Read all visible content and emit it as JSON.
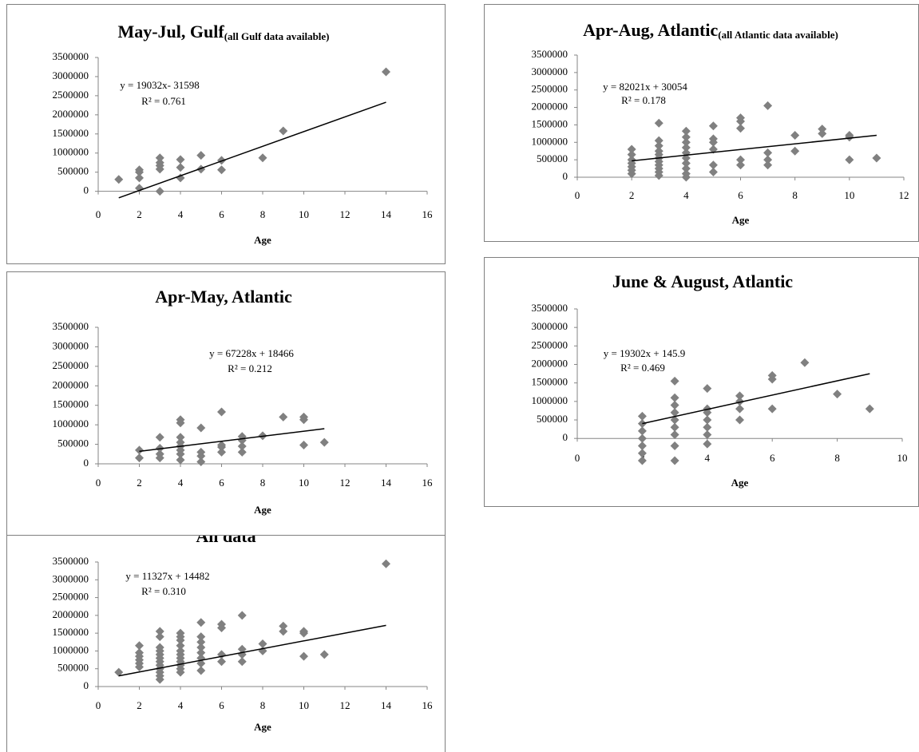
{
  "chart_data": [
    {
      "type": "scatter",
      "title": "May-Jul, Gulf",
      "subtitle": "(all Gulf data available)",
      "x_label": "Age",
      "equation": "y = 19032x- 31598",
      "r_squared": "R² = 0.761",
      "color": "#808080",
      "trend_color": "#000000",
      "xlim": [
        0,
        16
      ],
      "xticks": [
        0,
        2,
        4,
        6,
        8,
        10,
        12,
        14,
        16
      ],
      "ylim": [
        -300000,
        3500000
      ],
      "yticks": [
        0,
        500000,
        1000000,
        1500000,
        2000000,
        2500000,
        3000000,
        3500000
      ],
      "x": [
        1,
        2,
        2,
        2,
        2,
        3,
        3,
        3,
        3,
        3,
        4,
        4,
        4,
        5,
        5,
        6,
        6,
        8,
        9,
        14
      ],
      "values": [
        310000,
        560000,
        500000,
        350000,
        80000,
        875000,
        750000,
        670000,
        580000,
        0,
        830000,
        625000,
        350000,
        940000,
        580000,
        810000,
        560000,
        875000,
        1580000,
        3125000
      ],
      "trendline": {
        "x": [
          1,
          14
        ],
        "y": [
          -170000,
          2330000
        ]
      }
    },
    {
      "type": "scatter",
      "title": "Apr-Aug, Atlantic",
      "subtitle": "(all Atlantic data available)",
      "x_label": "Age",
      "equation": "y = 82021x + 30054",
      "r_squared": "R² = 0.178",
      "color": "#808080",
      "trend_color": "#000000",
      "xlim": [
        0,
        12
      ],
      "xticks": [
        0,
        2,
        4,
        6,
        8,
        10,
        12
      ],
      "ylim": [
        0,
        3500000
      ],
      "yticks": [
        0,
        500000,
        1000000,
        1500000,
        2000000,
        2500000,
        3000000,
        3500000
      ],
      "x": [
        2,
        2,
        2,
        2,
        2,
        2,
        2,
        3,
        3,
        3,
        3,
        3,
        3,
        3,
        3,
        3,
        3,
        3,
        4,
        4,
        4,
        4,
        4,
        4,
        4,
        4,
        4,
        4,
        5,
        5,
        5,
        5,
        5,
        5,
        6,
        6,
        6,
        6,
        6,
        7,
        7,
        7,
        7,
        8,
        8,
        9,
        9,
        10,
        10,
        10,
        11
      ],
      "values": [
        800000,
        650000,
        500000,
        400000,
        300000,
        200000,
        100000,
        1550000,
        1050000,
        900000,
        750000,
        650000,
        550000,
        450000,
        350000,
        250000,
        150000,
        50000,
        1320000,
        1150000,
        1000000,
        850000,
        700000,
        550000,
        400000,
        250000,
        100000,
        0,
        1470000,
        1100000,
        1000000,
        800000,
        350000,
        150000,
        1700000,
        1600000,
        1400000,
        500000,
        350000,
        2050000,
        700000,
        500000,
        350000,
        1200000,
        750000,
        1380000,
        1250000,
        1200000,
        1150000,
        500000,
        550000
      ],
      "trendline": {
        "x": [
          2,
          11
        ],
        "y": [
          470000,
          1200000
        ]
      }
    },
    {
      "type": "scatter",
      "title": "Apr-May, Atlantic",
      "x_label": "Age",
      "equation": "y = 67228x + 18466",
      "r_squared": "R² = 0.212",
      "color": "#808080",
      "trend_color": "#000000",
      "xlim": [
        0,
        16
      ],
      "xticks": [
        0,
        2,
        4,
        6,
        8,
        10,
        12,
        14,
        16
      ],
      "ylim": [
        0,
        3500000
      ],
      "yticks": [
        0,
        500000,
        1000000,
        1500000,
        2000000,
        2500000,
        3000000,
        3500000
      ],
      "x": [
        2,
        2,
        3,
        3,
        3,
        3,
        4,
        4,
        4,
        4,
        4,
        4,
        4,
        4,
        5,
        5,
        5,
        5,
        6,
        6,
        6,
        6,
        7,
        7,
        7,
        7,
        8,
        9,
        10,
        10,
        10,
        11
      ],
      "values": [
        350000,
        150000,
        680000,
        400000,
        250000,
        150000,
        1130000,
        1050000,
        680000,
        550000,
        450000,
        350000,
        250000,
        100000,
        920000,
        300000,
        200000,
        50000,
        1330000,
        480000,
        430000,
        300000,
        700000,
        600000,
        450000,
        300000,
        720000,
        1200000,
        1200000,
        1130000,
        480000,
        550000
      ],
      "trendline": {
        "x": [
          2,
          11
        ],
        "y": [
          320000,
          900000
        ]
      }
    },
    {
      "type": "scatter",
      "title": "June & August, Atlantic",
      "x_label": "Age",
      "equation": "y = 19302x + 145.9",
      "r_squared": "R² = 0.469",
      "color": "#808080",
      "trend_color": "#000000",
      "xlim": [
        0,
        10
      ],
      "xticks": [
        0,
        2,
        4,
        6,
        8,
        10
      ],
      "ylim": [
        -600000,
        3500000
      ],
      "yticks": [
        0,
        500000,
        1000000,
        1500000,
        2000000,
        2500000,
        3000000,
        3500000
      ],
      "x": [
        2,
        2,
        2,
        2,
        2,
        2,
        2,
        3,
        3,
        3,
        3,
        3,
        3,
        3,
        3,
        3,
        4,
        4,
        4,
        4,
        4,
        4,
        4,
        5,
        5,
        5,
        5,
        6,
        6,
        6,
        7,
        8,
        9
      ],
      "values": [
        600000,
        400000,
        200000,
        0,
        -200000,
        -400000,
        -600000,
        1550000,
        1100000,
        900000,
        700000,
        500000,
        300000,
        100000,
        -200000,
        -600000,
        1350000,
        800000,
        700000,
        500000,
        300000,
        100000,
        -150000,
        1150000,
        1000000,
        800000,
        500000,
        1700000,
        1600000,
        800000,
        2050000,
        1200000,
        800000
      ],
      "trendline": {
        "x": [
          2,
          9
        ],
        "y": [
          400000,
          1750000
        ]
      }
    },
    {
      "type": "scatter",
      "title": "All data",
      "x_label": "Age",
      "equation": "y = 11327x + 14482",
      "r_squared": "R² = 0.310",
      "color": "#808080",
      "trend_color": "#000000",
      "xlim": [
        0,
        16
      ],
      "xticks": [
        0,
        2,
        4,
        6,
        8,
        10,
        12,
        14,
        16
      ],
      "ylim": [
        0,
        3500000
      ],
      "yticks": [
        0,
        500000,
        1000000,
        1500000,
        2000000,
        2500000,
        3000000,
        3500000
      ],
      "x": [
        1,
        2,
        2,
        2,
        2,
        2,
        2,
        3,
        3,
        3,
        3,
        3,
        3,
        3,
        3,
        3,
        3,
        3,
        3,
        4,
        4,
        4,
        4,
        4,
        4,
        4,
        4,
        4,
        4,
        4,
        5,
        5,
        5,
        5,
        5,
        5,
        5,
        5,
        6,
        6,
        6,
        6,
        7,
        7,
        7,
        7,
        8,
        8,
        9,
        9,
        10,
        10,
        10,
        11,
        14
      ],
      "values": [
        400000,
        1150000,
        950000,
        850000,
        750000,
        650000,
        550000,
        1550000,
        1400000,
        1100000,
        1000000,
        900000,
        800000,
        700000,
        600000,
        500000,
        400000,
        300000,
        200000,
        1500000,
        1400000,
        1300000,
        1150000,
        1000000,
        900000,
        800000,
        700000,
        600000,
        500000,
        400000,
        1800000,
        1400000,
        1250000,
        1100000,
        950000,
        800000,
        650000,
        450000,
        1750000,
        1650000,
        900000,
        700000,
        2000000,
        1050000,
        900000,
        700000,
        1200000,
        1000000,
        1700000,
        1550000,
        1550000,
        1500000,
        850000,
        900000,
        3450000
      ],
      "trendline": {
        "x": [
          1,
          14
        ],
        "y": [
          300000,
          1720000
        ]
      }
    }
  ]
}
